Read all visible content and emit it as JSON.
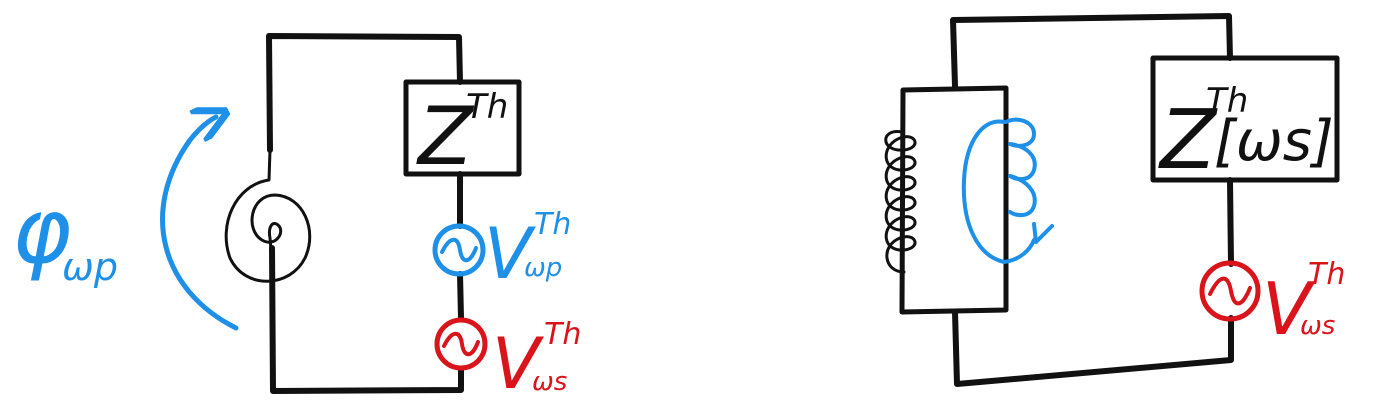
{
  "colors": {
    "ink": "#111111",
    "blue": "#1e90e8",
    "red": "#d9141b",
    "paper": "#ffffff"
  },
  "left_circuit": {
    "impedance_label": {
      "main": "Z",
      "sup": "Th"
    },
    "flux_label": {
      "main": "φ",
      "sub": "ωp"
    },
    "source_p_label": {
      "main": "V",
      "sup": "Th",
      "sub": "ωp"
    },
    "source_s_label": {
      "main": "V",
      "sup": "Th",
      "sub": "ωs"
    }
  },
  "right_circuit": {
    "impedance_label": {
      "main": "Z",
      "sup": "Th",
      "arg": "[ωs]"
    },
    "source_s_label": {
      "main": "V",
      "sup": "Th",
      "sub": "ωs"
    }
  }
}
